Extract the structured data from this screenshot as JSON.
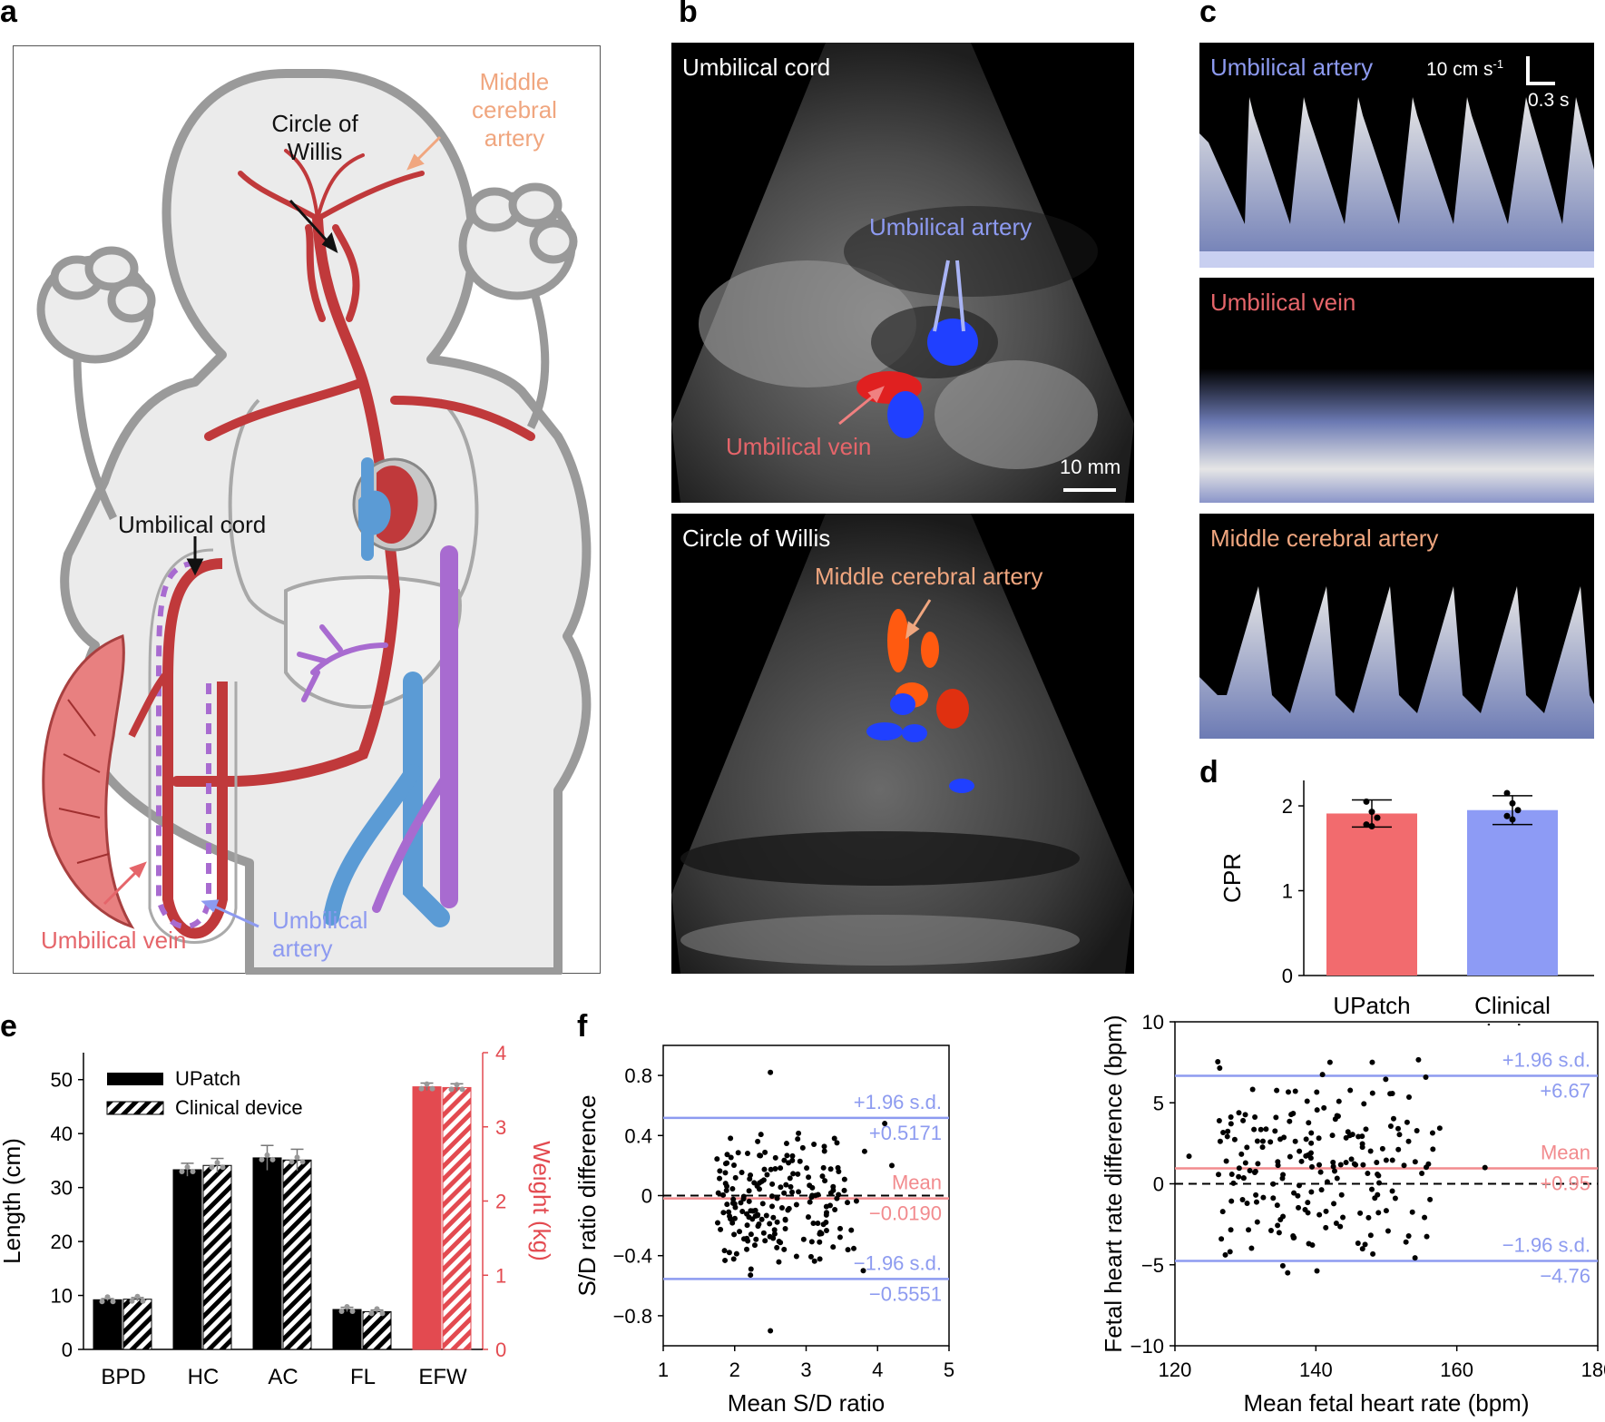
{
  "panel_labels": {
    "a": "a",
    "b": "b",
    "c": "c",
    "d": "d",
    "e": "e",
    "f": "f"
  },
  "colors": {
    "artery_red": "#c0393b",
    "vein_blue": "#4a90d9",
    "ua_purple": "#a86bd0",
    "ua_label": "#8d9af0",
    "uv_label": "#e5656a",
    "mca_label": "#f0a67f",
    "bar_red": "#f26b6e",
    "bar_blue": "#8d9bf5",
    "mean_line": "#f28b8e",
    "sd_line": "#8d9bf0"
  },
  "panel_a": {
    "mca_label": [
      "Middle",
      "cerebral",
      "artery"
    ],
    "cow_label": [
      "Circle of",
      "Willis"
    ],
    "cord_label": "Umbilical cord",
    "uv_label": "Umbilical vein",
    "ua_label": [
      "Umbilical",
      "artery"
    ]
  },
  "panel_b": {
    "top_title": "Umbilical cord",
    "top_ua": "Umbilical artery",
    "top_uv": "Umbilical vein",
    "scale": "10 mm",
    "bottom_title": "Circle of Willis",
    "bottom_mca": "Middle cerebral artery"
  },
  "panel_c": {
    "ua": "Umbilical artery",
    "uv": "Umbilical vein",
    "mca": "Middle cerebral artery",
    "scale_y": "10 cm s",
    "scale_y_sup": "-1",
    "scale_x": "0.3 s"
  },
  "chart_data": [
    {
      "id": "d",
      "type": "bar",
      "categories": [
        "UPatch",
        "Clinical device"
      ],
      "category_lines": [
        [
          "UPatch"
        ],
        [
          "Clinical",
          "device"
        ]
      ],
      "values": [
        1.91,
        1.95
      ],
      "errors": [
        0.16,
        0.17
      ],
      "points": [
        [
          2.05,
          1.93,
          1.86,
          1.78,
          1.76
        ],
        [
          2.15,
          2.03,
          1.95,
          1.88,
          1.84
        ]
      ],
      "xlabel": "",
      "ylabel": "CPR",
      "ylim": [
        0,
        2.3
      ],
      "yticks": [
        0,
        1,
        2
      ],
      "colors": [
        "#f26b6e",
        "#8d9bf5"
      ]
    },
    {
      "id": "e",
      "type": "bar",
      "categories": [
        "BPD",
        "HC",
        "AC",
        "FL",
        "EFW"
      ],
      "series": [
        {
          "name": "UPatch",
          "values": [
            9.2,
            33.3,
            35.5,
            7.4,
            3.54
          ]
        },
        {
          "name": "Clinical device",
          "values": [
            9.3,
            34.1,
            35.1,
            7.0,
            3.53
          ]
        }
      ],
      "errors": [
        [
          0.2,
          1.2,
          2.3,
          0.4,
          0.05
        ],
        [
          0.3,
          1.3,
          2.0,
          0.3,
          0.05
        ]
      ],
      "ylabel": "Length (cm)",
      "y2label": "Weight (kg)",
      "ylim": [
        0,
        55
      ],
      "yticks": [
        0,
        10,
        20,
        30,
        40,
        50
      ],
      "y2lim": [
        0,
        4
      ],
      "y2ticks": [
        0,
        1,
        2,
        3,
        4
      ],
      "legend": "top-left"
    },
    {
      "id": "f_left",
      "type": "scatter",
      "xlabel": "Mean S/D ratio",
      "ylabel": "S/D ratio difference",
      "xlim": [
        1,
        5
      ],
      "ylim": [
        -1.0,
        1.0
      ],
      "xticks": [
        1,
        2,
        3,
        4,
        5
      ],
      "yticks": [
        -0.8,
        -0.4,
        0,
        0.4,
        0.8
      ],
      "ytick_labels": [
        "−0.8",
        "−0.4",
        "0",
        "0.4",
        "0.8"
      ],
      "lines": [
        {
          "label": "+1.96 s.d.",
          "value_label": "+0.5171",
          "y": 0.5171,
          "color": "sd"
        },
        {
          "label": "Mean",
          "value_label": "−0.0190",
          "y": -0.019,
          "color": "mean"
        },
        {
          "label": "−1.96 s.d.",
          "value_label": "−0.5551",
          "y": -0.5551,
          "color": "sd"
        }
      ]
    },
    {
      "id": "f_right",
      "type": "scatter",
      "xlabel": "Mean fetal heart rate (bpm)",
      "ylabel": "Fetal heart rate difference (bpm)",
      "xlim": [
        120,
        180
      ],
      "ylim": [
        -10,
        10
      ],
      "xticks": [
        120,
        140,
        160,
        180
      ],
      "yticks": [
        -10,
        -5,
        0,
        5,
        10
      ],
      "ytick_labels": [
        "−10",
        "−5",
        "0",
        "5",
        "10"
      ],
      "lines": [
        {
          "label": "+1.96 s.d.",
          "value_label": "+6.67",
          "y": 6.67,
          "color": "sd"
        },
        {
          "label": "Mean",
          "value_label": "+0.95",
          "y": 0.95,
          "color": "mean"
        },
        {
          "label": "−1.96 s.d.",
          "value_label": "−4.76",
          "y": -4.76,
          "color": "sd"
        }
      ]
    }
  ]
}
